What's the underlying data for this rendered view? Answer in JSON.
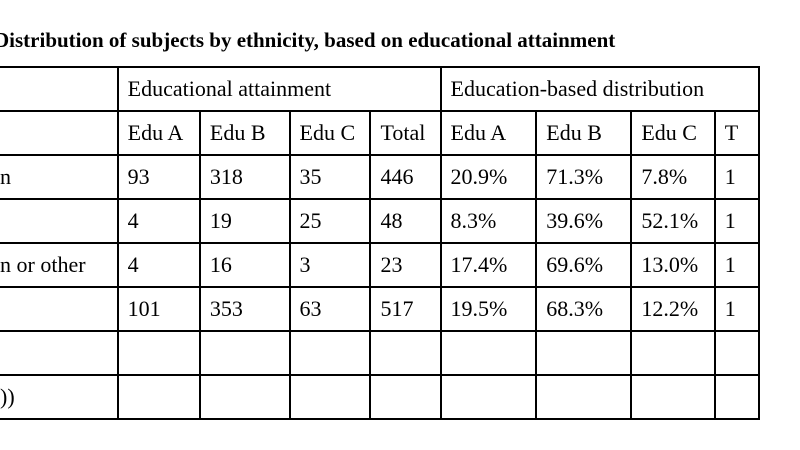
{
  "title": "Distribution of subjects by ethnicity, based on educational attainment",
  "header_groups": {
    "attainment": "Educational attainment",
    "distribution": "Education-based distribution"
  },
  "subheaders": {
    "attainment": [
      "Edu A",
      "Edu B",
      "Edu C",
      "Total"
    ],
    "distribution": [
      "Edu A",
      "Edu B",
      "Edu C"
    ],
    "distribution_clipped": "T"
  },
  "rows": [
    {
      "label": "n",
      "attainment": [
        "93",
        "318",
        "35",
        "446"
      ],
      "distribution": [
        "20.9%",
        "71.3%",
        "7.8%"
      ],
      "clipped": "1"
    },
    {
      "label": "",
      "attainment": [
        "4",
        "19",
        "25",
        "48"
      ],
      "distribution": [
        "8.3%",
        "39.6%",
        "52.1%"
      ],
      "clipped": "1"
    },
    {
      "label": "n or other",
      "attainment": [
        "4",
        "16",
        "3",
        "23"
      ],
      "distribution": [
        "17.4%",
        "69.6%",
        "13.0%"
      ],
      "clipped": "1"
    },
    {
      "label": "",
      "attainment": [
        "101",
        "353",
        "63",
        "517"
      ],
      "distribution": [
        "19.5%",
        "68.3%",
        "12.2%"
      ],
      "clipped": "1"
    },
    {
      "label": "",
      "attainment": [
        "",
        "",
        "",
        ""
      ],
      "distribution": [
        "",
        "",
        ""
      ],
      "clipped": ""
    },
    {
      "label": "))",
      "attainment": [
        "",
        "",
        "",
        ""
      ],
      "distribution": [
        "",
        "",
        ""
      ],
      "clipped": ""
    }
  ]
}
